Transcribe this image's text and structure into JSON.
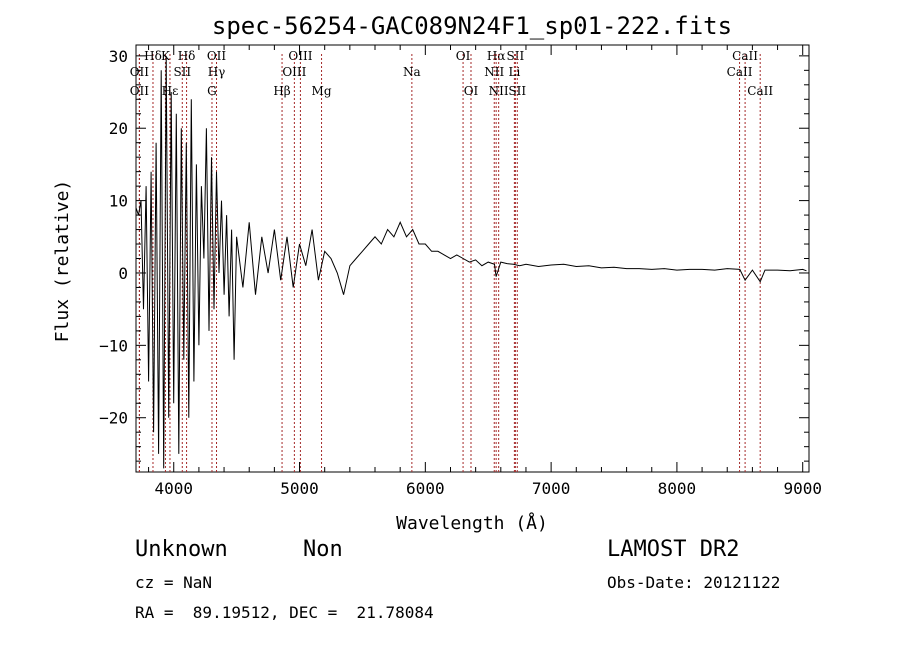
{
  "chart_data": {
    "type": "line",
    "title": "spec-56254-GAC089N24F1_sp01-222.fits",
    "xlabel": "Wavelength (Å)",
    "ylabel": "Flux (relative)",
    "xlim": [
      3700,
      9050
    ],
    "ylim": [
      -27.5,
      31.5
    ],
    "x_ticks": [
      4000,
      5000,
      6000,
      7000,
      8000,
      9000
    ],
    "y_ticks": [
      -20,
      -10,
      0,
      10,
      20,
      30
    ],
    "grid": false,
    "legend": "none",
    "line_color": "#000000",
    "marker_color": "#a52a2a",
    "series": [
      {
        "x": [
          3700,
          3720,
          3740,
          3760,
          3780,
          3800,
          3820,
          3840,
          3860,
          3880,
          3900,
          3920,
          3940,
          3960,
          3980,
          4000,
          4020,
          4040,
          4060,
          4080,
          4100,
          4120,
          4140,
          4160,
          4180,
          4200,
          4220,
          4240,
          4260,
          4280,
          4300,
          4320,
          4340,
          4360,
          4380,
          4400,
          4420,
          4440,
          4460,
          4480,
          4500,
          4550,
          4600,
          4650,
          4700,
          4750,
          4800,
          4850,
          4900,
          4950,
          5000,
          5050,
          5100,
          5150,
          5200,
          5250,
          5300,
          5350,
          5400,
          5450,
          5500,
          5550,
          5600,
          5650,
          5700,
          5750,
          5800,
          5850,
          5900,
          5950,
          6000,
          6050,
          6100,
          6150,
          6200,
          6250,
          6300,
          6350,
          6400,
          6450,
          6500,
          6550,
          6563,
          6600,
          6650,
          6700,
          6750,
          6800,
          6900,
          7000,
          7100,
          7200,
          7300,
          7400,
          7500,
          7600,
          7700,
          7800,
          7900,
          8000,
          8100,
          8200,
          8300,
          8400,
          8500,
          8542,
          8600,
          8662,
          8700,
          8800,
          8900,
          9000,
          9030
        ],
        "y": [
          9,
          8,
          10,
          -5,
          12,
          -15,
          14,
          -22,
          18,
          -25,
          28,
          -27,
          30,
          -20,
          25,
          -18,
          22,
          -25,
          20,
          -12,
          18,
          -20,
          24,
          -15,
          15,
          -10,
          12,
          2,
          20,
          -8,
          16,
          -5,
          14,
          0,
          10,
          -3,
          8,
          -6,
          6,
          -12,
          5,
          -2,
          7,
          -3,
          5,
          0,
          6,
          -1,
          5,
          -2,
          4,
          1,
          6,
          -1,
          3,
          2,
          0,
          -3,
          1,
          2,
          3,
          4,
          5,
          4,
          6,
          5,
          7,
          5,
          6,
          4,
          4,
          3,
          3,
          2.5,
          2,
          2.5,
          2,
          1.5,
          1.8,
          1,
          1.5,
          1.2,
          -0.5,
          1.5,
          1.3,
          1.2,
          1,
          1.2,
          0.9,
          1.1,
          1.2,
          0.9,
          1.0,
          0.7,
          0.8,
          0.6,
          0.6,
          0.5,
          0.6,
          0.4,
          0.5,
          0.5,
          0.4,
          0.6,
          0.5,
          -1.0,
          0.4,
          -1.2,
          0.4,
          0.4,
          0.3,
          0.5,
          0.3
        ]
      }
    ],
    "lines": [
      {
        "label": "Hδ",
        "x": 3835,
        "row": 0
      },
      {
        "label": "K",
        "x": 3934,
        "row": 0
      },
      {
        "label": "Hδ",
        "x": 4102,
        "row": 0
      },
      {
        "label": "OII",
        "x": 4340,
        "row": 0
      },
      {
        "label": "OIII",
        "x": 5007,
        "row": 0
      },
      {
        "label": "OI",
        "x": 6300,
        "row": 0
      },
      {
        "label": "Hα",
        "x": 6563,
        "row": 0
      },
      {
        "label": "SII",
        "x": 6716,
        "row": 0
      },
      {
        "label": "CaII",
        "x": 8542,
        "row": 0
      },
      {
        "label": "OII",
        "x": 3727,
        "row": 1
      },
      {
        "label": "SII",
        "x": 4068,
        "row": 1
      },
      {
        "label": "Hγ",
        "x": 4340,
        "row": 1
      },
      {
        "label": "OIII",
        "x": 4959,
        "row": 1
      },
      {
        "label": "Na",
        "x": 5893,
        "row": 1
      },
      {
        "label": "NII",
        "x": 6548,
        "row": 1
      },
      {
        "label": "Li",
        "x": 6708,
        "row": 1
      },
      {
        "label": "CaII",
        "x": 8498,
        "row": 1
      },
      {
        "label": "OII",
        "x": 3727,
        "row": 2
      },
      {
        "label": "Hε",
        "x": 3970,
        "row": 2
      },
      {
        "label": "G",
        "x": 4304,
        "row": 2
      },
      {
        "label": "Hβ",
        "x": 4861,
        "row": 2
      },
      {
        "label": "Mg",
        "x": 5175,
        "row": 2
      },
      {
        "label": "OI",
        "x": 6363,
        "row": 2
      },
      {
        "label": "NII",
        "x": 6583,
        "row": 2
      },
      {
        "label": "SII",
        "x": 6731,
        "row": 2
      },
      {
        "label": "CaII",
        "x": 8662,
        "row": 2
      }
    ]
  },
  "info": {
    "class": "Unknown",
    "subclass": "Non",
    "cz": "cz = NaN",
    "coords": "RA =  89.19512, DEC =  21.78084",
    "survey": "LAMOST DR2",
    "obs_date": "Obs-Date: 20121122"
  }
}
